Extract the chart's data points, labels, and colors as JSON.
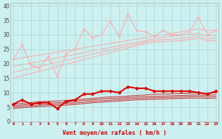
{
  "background_color": "#cdf0f0",
  "grid_color": "#b0d8d8",
  "xlabel": "Vent moyen/en rafales ( km/h )",
  "x_values": [
    0,
    1,
    2,
    3,
    4,
    5,
    6,
    7,
    8,
    9,
    10,
    11,
    12,
    13,
    14,
    15,
    16,
    17,
    18,
    19,
    20,
    21,
    22,
    23
  ],
  "pink_zigzag": [
    21.5,
    26.5,
    19.5,
    18.5,
    22.5,
    15.5,
    23.5,
    25.0,
    32.0,
    29.0,
    30.0,
    34.5,
    29.5,
    37.0,
    31.5,
    31.0,
    29.5,
    31.5,
    30.0,
    30.0,
    31.0,
    36.0,
    30.0,
    31.5
  ],
  "pink_trend_lines": [
    [
      21.5,
      22.0,
      22.5,
      23.0,
      23.5,
      24.0,
      24.5,
      25.0,
      25.5,
      26.0,
      26.5,
      27.0,
      27.5,
      28.0,
      28.5,
      29.0,
      29.5,
      30.0,
      30.5,
      31.0,
      31.5,
      32.0,
      31.5,
      31.5
    ],
    [
      19.0,
      19.6,
      20.2,
      20.8,
      21.4,
      22.0,
      22.6,
      23.2,
      23.8,
      24.4,
      25.0,
      25.6,
      26.2,
      26.8,
      27.4,
      28.0,
      28.6,
      29.2,
      29.5,
      29.8,
      30.0,
      30.5,
      29.5,
      30.0
    ],
    [
      17.0,
      17.7,
      18.4,
      19.1,
      19.8,
      20.5,
      21.2,
      21.9,
      22.6,
      23.3,
      24.0,
      24.7,
      25.4,
      26.1,
      26.8,
      27.5,
      28.0,
      28.3,
      28.5,
      28.7,
      29.0,
      29.5,
      28.5,
      29.0
    ],
    [
      15.0,
      15.8,
      16.6,
      17.4,
      18.2,
      19.0,
      19.8,
      20.6,
      21.4,
      22.2,
      23.0,
      23.8,
      24.6,
      25.4,
      26.2,
      27.0,
      27.4,
      27.6,
      27.8,
      28.0,
      28.3,
      28.8,
      27.8,
      28.0
    ]
  ],
  "red_zigzag": [
    6.0,
    7.5,
    6.0,
    6.5,
    6.5,
    4.5,
    7.0,
    7.5,
    9.5,
    9.5,
    10.5,
    10.5,
    10.0,
    12.0,
    11.5,
    11.5,
    10.5,
    10.5,
    10.5,
    10.5,
    10.5,
    10.0,
    9.5,
    10.5
  ],
  "red_trend_lines": [
    [
      6.0,
      6.3,
      6.6,
      6.9,
      7.0,
      7.1,
      7.3,
      7.5,
      7.8,
      8.0,
      8.3,
      8.5,
      8.6,
      8.8,
      9.0,
      9.2,
      9.4,
      9.5,
      9.6,
      9.7,
      9.8,
      9.9,
      9.7,
      10.0
    ],
    [
      5.5,
      5.8,
      6.0,
      6.2,
      6.4,
      6.5,
      6.7,
      7.0,
      7.3,
      7.5,
      7.8,
      8.0,
      8.1,
      8.3,
      8.5,
      8.6,
      8.7,
      8.8,
      8.9,
      9.0,
      9.1,
      9.2,
      9.0,
      9.3
    ],
    [
      5.0,
      5.3,
      5.5,
      5.7,
      5.9,
      6.0,
      6.2,
      6.4,
      6.7,
      7.0,
      7.2,
      7.4,
      7.6,
      7.8,
      8.0,
      8.1,
      8.2,
      8.3,
      8.4,
      8.5,
      8.6,
      8.7,
      8.5,
      8.7
    ],
    [
      4.5,
      4.8,
      5.0,
      5.2,
      5.4,
      5.5,
      5.7,
      5.9,
      6.2,
      6.5,
      6.7,
      6.9,
      7.1,
      7.3,
      7.5,
      7.6,
      7.7,
      7.8,
      7.9,
      8.0,
      8.1,
      8.1,
      8.0,
      8.1
    ]
  ],
  "pink_color": "#ffaaaa",
  "red_dark_color": "#dd0000",
  "red_line_color": "#cc2222",
  "marker_size": 2.0,
  "yticks": [
    0,
    5,
    10,
    15,
    20,
    25,
    30,
    35,
    40
  ],
  "ylim": [
    0,
    41
  ],
  "xlim": [
    -0.3,
    23.3
  ]
}
